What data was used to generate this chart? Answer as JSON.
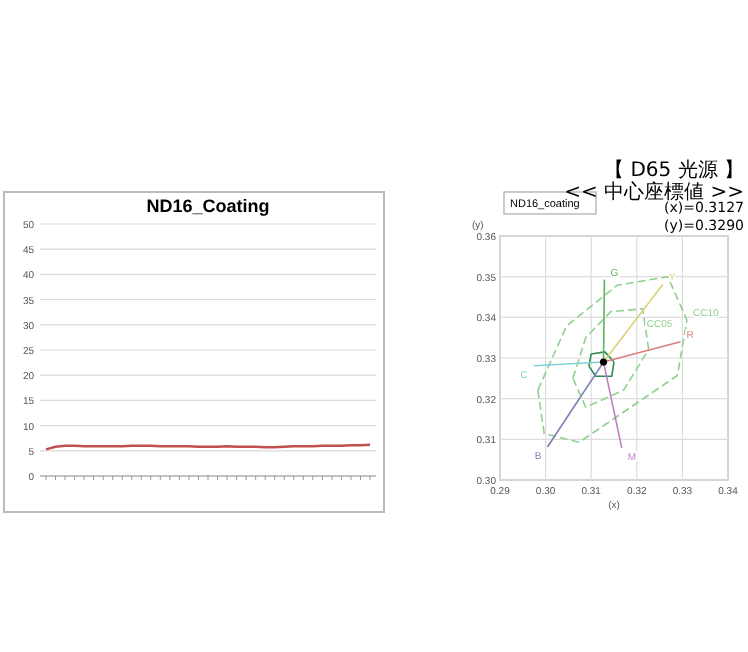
{
  "chart_data": [
    {
      "type": "line",
      "title": "ND16_Coating",
      "categories": [
        null,
        null,
        null,
        null,
        null,
        null,
        null,
        null,
        null,
        null,
        null,
        null,
        null,
        null,
        null,
        null,
        null,
        null,
        null,
        null,
        null,
        null,
        null,
        null,
        null,
        null,
        null,
        null,
        null,
        null,
        null,
        null,
        null,
        null,
        null
      ],
      "series": [
        {
          "color": "#c0504d",
          "values": [
            5.3,
            5.8,
            6.0,
            6.0,
            5.9,
            5.9,
            5.9,
            5.9,
            5.9,
            6.0,
            6.0,
            6.0,
            5.9,
            5.9,
            5.9,
            5.9,
            5.8,
            5.8,
            5.8,
            5.9,
            5.8,
            5.8,
            5.8,
            5.7,
            5.7,
            5.8,
            5.9,
            5.9,
            5.9,
            6.0,
            6.0,
            6.0,
            6.1,
            6.1,
            6.2
          ]
        }
      ],
      "ylim": [
        0,
        50
      ],
      "yticks": [
        0,
        5,
        10,
        15,
        20,
        25,
        30,
        35,
        40,
        45,
        50
      ],
      "grid": "y",
      "marker": "none",
      "legend": false
    },
    {
      "type": "line",
      "xlabel": "(x)",
      "ylabel": "(y)",
      "xlim": [
        0.29,
        0.34
      ],
      "ylim": [
        0.3,
        0.36
      ],
      "xticks": [
        {
          "value": 0.29,
          "label": "0.29"
        },
        {
          "value": 0.3,
          "label": "0.30"
        },
        {
          "value": 0.31,
          "label": "0.31"
        },
        {
          "value": 0.32,
          "label": "0.32"
        },
        {
          "value": 0.33,
          "label": "0.33"
        },
        {
          "value": 0.34,
          "label": "0.34"
        }
      ],
      "yticks": [
        {
          "value": 0.3,
          "label": "0.30"
        },
        {
          "value": 0.31,
          "label": "0.31"
        },
        {
          "value": 0.32,
          "label": "0.32"
        },
        {
          "value": 0.33,
          "label": "0.33"
        },
        {
          "value": 0.34,
          "label": "0.34"
        },
        {
          "value": 0.35,
          "label": "0.35"
        },
        {
          "value": 0.36,
          "label": "0.36"
        }
      ],
      "grid": true,
      "legend": false,
      "series": [
        {
          "name": "CC10",
          "color": "#90d090",
          "line_style": "dashed",
          "x": [
            0.2983,
            0.3046,
            0.3157,
            0.3268,
            0.331
          ],
          "values": [
            0.3221,
            0.3379,
            0.3479,
            0.35,
            0.3393
          ]
        },
        {
          "color": "#90d090",
          "line_style": "dashed",
          "x": [
            0.2983,
            0.2997,
            0.3074,
            0.3289,
            0.331
          ],
          "values": [
            0.3221,
            0.3114,
            0.3093,
            0.3257,
            0.3393
          ]
        },
        {
          "name": "CC05",
          "color": "#90d090",
          "line_style": "dashed",
          "x": [
            0.306,
            0.3088,
            0.3143,
            0.3213,
            0.3226
          ],
          "values": [
            0.325,
            0.335,
            0.3414,
            0.3421,
            0.3321
          ]
        },
        {
          "color": "#90d090",
          "line_style": "dashed",
          "x": [
            0.306,
            0.3088,
            0.3171,
            0.3226
          ],
          "values": [
            0.325,
            0.3179,
            0.3221,
            0.3321
          ]
        },
        {
          "color": "#2e8b57",
          "line_style": "solid",
          "x": [
            0.3095,
            0.31,
            0.313,
            0.315
          ],
          "values": [
            0.328,
            0.331,
            0.3315,
            0.329
          ]
        },
        {
          "color": "#2e8b57",
          "line_style": "solid",
          "x": [
            0.3095,
            0.311,
            0.3145,
            0.315
          ],
          "values": [
            0.328,
            0.3255,
            0.3255,
            0.329
          ]
        },
        {
          "name": "R",
          "color": "#d9807f",
          "line_style": "solid",
          "x": [
            0.3127,
            0.3296
          ],
          "values": [
            0.329,
            0.334
          ]
        },
        {
          "name": "G",
          "color": "#5fb35f",
          "line_style": "solid",
          "x": [
            0.3127,
            0.3129
          ],
          "values": [
            0.329,
            0.3493
          ]
        },
        {
          "name": "B",
          "color": "#7a7fb0",
          "line_style": "solid",
          "x": [
            0.3127,
            0.3004
          ],
          "values": [
            0.329,
            0.3081
          ]
        },
        {
          "name": "C",
          "color": "#7fd3d8",
          "line_style": "solid",
          "x": [
            0.3127,
            0.2974
          ],
          "values": [
            0.329,
            0.3281
          ]
        },
        {
          "name": "M",
          "color": "#c27fbf",
          "line_style": "solid",
          "x": [
            0.3127,
            0.3167
          ],
          "values": [
            0.329,
            0.3079
          ]
        },
        {
          "name": "Y",
          "color": "#d8d27a",
          "line_style": "solid",
          "x": [
            0.3127,
            0.3257
          ],
          "values": [
            0.329,
            0.3481
          ]
        },
        {
          "type": "scatter",
          "color": "#000000",
          "marker": "circle",
          "x": [
            0.3127
          ],
          "values": [
            0.329
          ]
        }
      ],
      "annotations": [
        "ND16_coating",
        "【 D65 光源 】",
        "<< 中心座標値 >>",
        "(x)=0.3127",
        "(y)=0.3290"
      ]
    }
  ]
}
